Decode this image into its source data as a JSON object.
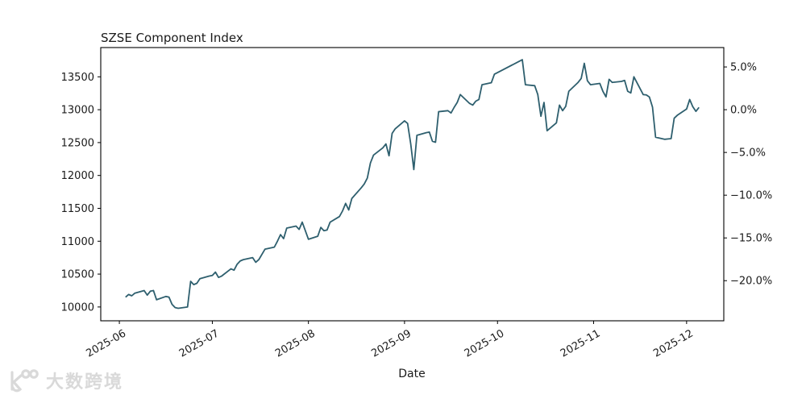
{
  "figure": {
    "background": "#ffffff",
    "axis_color": "#000000",
    "text_color": "#1a1a1a"
  },
  "chart_data": {
    "type": "line",
    "title": "SZSE Component Index",
    "xlabel": "Date",
    "ylabel_left": "",
    "ylabel_right": "",
    "grid": false,
    "legend": "none",
    "line_color": "#2e5f6e",
    "line_width": 1.8,
    "xlim": [
      "2025-05-26",
      "2025-12-13"
    ],
    "ylim": [
      9790,
      13945
    ],
    "x_ticks": [
      {
        "label": "2025-06",
        "date": "2025-06-01"
      },
      {
        "label": "2025-07",
        "date": "2025-07-01"
      },
      {
        "label": "2025-08",
        "date": "2025-08-01"
      },
      {
        "label": "2025-09",
        "date": "2025-09-01"
      },
      {
        "label": "2025-10",
        "date": "2025-10-01"
      },
      {
        "label": "2025-11",
        "date": "2025-11-01"
      },
      {
        "label": "2025-12",
        "date": "2025-12-01"
      }
    ],
    "y_ticks_left": [
      10000,
      10500,
      11000,
      11500,
      12000,
      12500,
      13000,
      13500
    ],
    "y_ticks_right": [
      {
        "label": "5.0%",
        "value": 13650
      },
      {
        "label": "0.0%",
        "value": 13000
      },
      {
        "label": "−5.0%",
        "value": 12350
      },
      {
        "label": "−10.0%",
        "value": 11700
      },
      {
        "label": "−15.0%",
        "value": 11050
      },
      {
        "label": "−20.0%",
        "value": 10400
      }
    ],
    "series": [
      {
        "name": "SZSE Component Index",
        "points": [
          [
            "2025-06-03",
            10150
          ],
          [
            "2025-06-04",
            10190
          ],
          [
            "2025-06-05",
            10170
          ],
          [
            "2025-06-06",
            10210
          ],
          [
            "2025-06-09",
            10250
          ],
          [
            "2025-06-10",
            10180
          ],
          [
            "2025-06-11",
            10240
          ],
          [
            "2025-06-12",
            10250
          ],
          [
            "2025-06-13",
            10110
          ],
          [
            "2025-06-16",
            10160
          ],
          [
            "2025-06-17",
            10150
          ],
          [
            "2025-06-18",
            10040
          ],
          [
            "2025-06-19",
            9990
          ],
          [
            "2025-06-20",
            9980
          ],
          [
            "2025-06-23",
            10000
          ],
          [
            "2025-06-24",
            10390
          ],
          [
            "2025-06-25",
            10340
          ],
          [
            "2025-06-26",
            10360
          ],
          [
            "2025-06-27",
            10430
          ],
          [
            "2025-06-30",
            10470
          ],
          [
            "2025-07-01",
            10480
          ],
          [
            "2025-07-02",
            10530
          ],
          [
            "2025-07-03",
            10450
          ],
          [
            "2025-07-04",
            10470
          ],
          [
            "2025-07-07",
            10580
          ],
          [
            "2025-07-08",
            10560
          ],
          [
            "2025-07-09",
            10650
          ],
          [
            "2025-07-10",
            10700
          ],
          [
            "2025-07-11",
            10720
          ],
          [
            "2025-07-14",
            10750
          ],
          [
            "2025-07-15",
            10680
          ],
          [
            "2025-07-16",
            10720
          ],
          [
            "2025-07-17",
            10800
          ],
          [
            "2025-07-18",
            10880
          ],
          [
            "2025-07-21",
            10910
          ],
          [
            "2025-07-22",
            11000
          ],
          [
            "2025-07-23",
            11100
          ],
          [
            "2025-07-24",
            11040
          ],
          [
            "2025-07-25",
            11200
          ],
          [
            "2025-07-28",
            11230
          ],
          [
            "2025-07-29",
            11180
          ],
          [
            "2025-07-30",
            11290
          ],
          [
            "2025-07-31",
            11160
          ],
          [
            "2025-08-01",
            11030
          ],
          [
            "2025-08-04",
            11075
          ],
          [
            "2025-08-05",
            11210
          ],
          [
            "2025-08-06",
            11160
          ],
          [
            "2025-08-07",
            11170
          ],
          [
            "2025-08-08",
            11290
          ],
          [
            "2025-08-11",
            11375
          ],
          [
            "2025-08-12",
            11460
          ],
          [
            "2025-08-13",
            11575
          ],
          [
            "2025-08-14",
            11475
          ],
          [
            "2025-08-15",
            11650
          ],
          [
            "2025-08-18",
            11810
          ],
          [
            "2025-08-19",
            11870
          ],
          [
            "2025-08-20",
            11960
          ],
          [
            "2025-08-21",
            12190
          ],
          [
            "2025-08-22",
            12310
          ],
          [
            "2025-08-25",
            12420
          ],
          [
            "2025-08-26",
            12480
          ],
          [
            "2025-08-27",
            12300
          ],
          [
            "2025-08-28",
            12640
          ],
          [
            "2025-08-29",
            12710
          ],
          [
            "2025-09-01",
            12830
          ],
          [
            "2025-09-02",
            12790
          ],
          [
            "2025-09-03",
            12480
          ],
          [
            "2025-09-04",
            12090
          ],
          [
            "2025-09-05",
            12610
          ],
          [
            "2025-09-08",
            12650
          ],
          [
            "2025-09-09",
            12660
          ],
          [
            "2025-09-10",
            12520
          ],
          [
            "2025-09-11",
            12505
          ],
          [
            "2025-09-12",
            12970
          ],
          [
            "2025-09-15",
            12985
          ],
          [
            "2025-09-16",
            12950
          ],
          [
            "2025-09-17",
            13035
          ],
          [
            "2025-09-18",
            13110
          ],
          [
            "2025-09-19",
            13230
          ],
          [
            "2025-09-22",
            13095
          ],
          [
            "2025-09-23",
            13070
          ],
          [
            "2025-09-24",
            13130
          ],
          [
            "2025-09-25",
            13155
          ],
          [
            "2025-09-26",
            13380
          ],
          [
            "2025-09-29",
            13410
          ],
          [
            "2025-09-30",
            13540
          ],
          [
            "2025-10-09",
            13760
          ],
          [
            "2025-10-10",
            13380
          ],
          [
            "2025-10-13",
            13365
          ],
          [
            "2025-10-14",
            13230
          ],
          [
            "2025-10-15",
            12900
          ],
          [
            "2025-10-16",
            13110
          ],
          [
            "2025-10-17",
            12680
          ],
          [
            "2025-10-20",
            12800
          ],
          [
            "2025-10-21",
            13070
          ],
          [
            "2025-10-22",
            12985
          ],
          [
            "2025-10-23",
            13050
          ],
          [
            "2025-10-24",
            13280
          ],
          [
            "2025-10-27",
            13415
          ],
          [
            "2025-10-28",
            13475
          ],
          [
            "2025-10-29",
            13705
          ],
          [
            "2025-10-30",
            13440
          ],
          [
            "2025-10-31",
            13380
          ],
          [
            "2025-11-03",
            13400
          ],
          [
            "2025-11-04",
            13280
          ],
          [
            "2025-11-05",
            13195
          ],
          [
            "2025-11-06",
            13462
          ],
          [
            "2025-11-07",
            13415
          ],
          [
            "2025-11-10",
            13430
          ],
          [
            "2025-11-11",
            13445
          ],
          [
            "2025-11-12",
            13280
          ],
          [
            "2025-11-13",
            13255
          ],
          [
            "2025-11-14",
            13500
          ],
          [
            "2025-11-17",
            13230
          ],
          [
            "2025-11-18",
            13225
          ],
          [
            "2025-11-19",
            13193
          ],
          [
            "2025-11-20",
            13040
          ],
          [
            "2025-11-21",
            12582
          ],
          [
            "2025-11-24",
            12550
          ],
          [
            "2025-11-25",
            12555
          ],
          [
            "2025-11-26",
            12560
          ],
          [
            "2025-11-27",
            12870
          ],
          [
            "2025-11-28",
            12915
          ],
          [
            "2025-12-01",
            13010
          ],
          [
            "2025-12-02",
            13155
          ],
          [
            "2025-12-03",
            13045
          ],
          [
            "2025-12-04",
            12975
          ],
          [
            "2025-12-05",
            13035
          ]
        ]
      }
    ]
  },
  "watermark": {
    "text": "大数跨境",
    "color": "#d9d9d9"
  }
}
